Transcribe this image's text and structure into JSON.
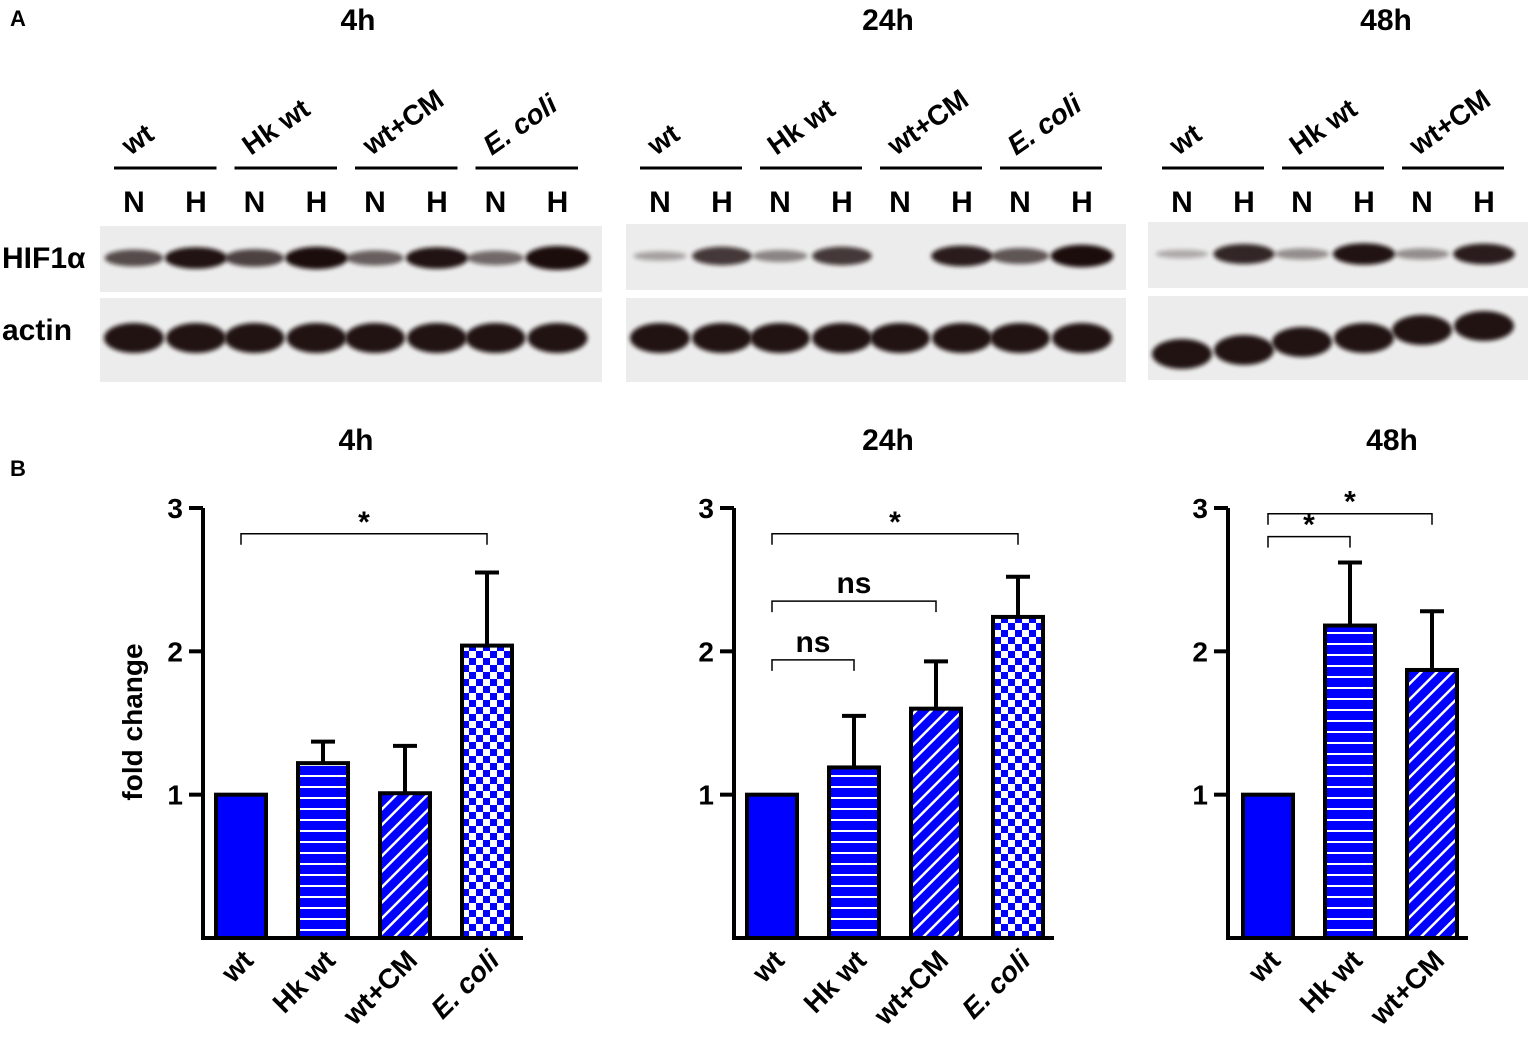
{
  "panel_labels": {
    "a": "A",
    "b": "B"
  },
  "blot": {
    "panels": [
      {
        "title": "4h",
        "groups": [
          "wt",
          "Hk wt",
          "wt+CM",
          "E. coli"
        ]
      },
      {
        "title": "24h",
        "groups": [
          "wt",
          "Hk wt",
          "wt+CM",
          "E. coli"
        ]
      },
      {
        "title": "48h",
        "groups": [
          "wt",
          "Hk wt",
          "wt+CM"
        ]
      }
    ],
    "lane_labels": [
      "N",
      "H"
    ],
    "row_labels": [
      "HIF1α",
      "actin"
    ],
    "hif_intensity": [
      [
        0.55,
        0.85,
        0.6,
        0.9,
        0.45,
        0.85,
        0.4,
        1.0
      ],
      [
        0.1,
        0.65,
        0.25,
        0.65,
        0.0,
        0.8,
        0.5,
        0.9
      ],
      [
        0.05,
        0.75,
        0.2,
        0.85,
        0.2,
        0.8
      ]
    ]
  },
  "chart_data": [
    {
      "type": "bar",
      "title": "4h",
      "ylabel": "fold change",
      "categories": [
        "wt",
        "Hk wt",
        "wt+CM",
        "E. coli"
      ],
      "values": [
        1.0,
        1.22,
        1.01,
        2.04
      ],
      "errors": [
        0,
        0.15,
        0.33,
        0.51
      ],
      "patterns": [
        "solid",
        "horizontal-lines",
        "diagonal-lines",
        "checker"
      ],
      "yticks": [
        "1",
        "2",
        "3"
      ],
      "ylim": [
        0,
        3
      ],
      "brackets": [
        {
          "from": 0,
          "to": 3,
          "label": "*",
          "y": 2.82
        }
      ]
    },
    {
      "type": "bar",
      "title": "24h",
      "ylabel": "",
      "categories": [
        "wt",
        "Hk wt",
        "wt+CM",
        "E. coli"
      ],
      "values": [
        1.0,
        1.19,
        1.6,
        2.24
      ],
      "errors": [
        0,
        0.36,
        0.33,
        0.28
      ],
      "patterns": [
        "solid",
        "horizontal-lines",
        "diagonal-lines",
        "checker"
      ],
      "yticks": [
        "1",
        "2",
        "3"
      ],
      "ylim": [
        0,
        3
      ],
      "brackets": [
        {
          "from": 0,
          "to": 3,
          "label": "*",
          "y": 2.82
        },
        {
          "from": 0,
          "to": 2,
          "label": "ns",
          "y": 2.35
        },
        {
          "from": 0,
          "to": 1,
          "label": "ns",
          "y": 1.94
        }
      ]
    },
    {
      "type": "bar",
      "title": "48h",
      "ylabel": "",
      "categories": [
        "wt",
        "Hk wt",
        "wt+CM"
      ],
      "values": [
        1.0,
        2.18,
        1.87
      ],
      "errors": [
        0,
        0.44,
        0.41
      ],
      "patterns": [
        "solid",
        "horizontal-lines",
        "diagonal-lines"
      ],
      "yticks": [
        "1",
        "2",
        "3"
      ],
      "ylim": [
        0,
        3
      ],
      "brackets": [
        {
          "from": 0,
          "to": 2,
          "label": "*",
          "y": 2.96
        },
        {
          "from": 0,
          "to": 1,
          "label": "*",
          "y": 2.8
        }
      ]
    }
  ],
  "colors": {
    "bar_fill": "#0000ff",
    "bar_stroke": "#000000",
    "band": "#1a0f0a",
    "membrane": "#ececec"
  }
}
